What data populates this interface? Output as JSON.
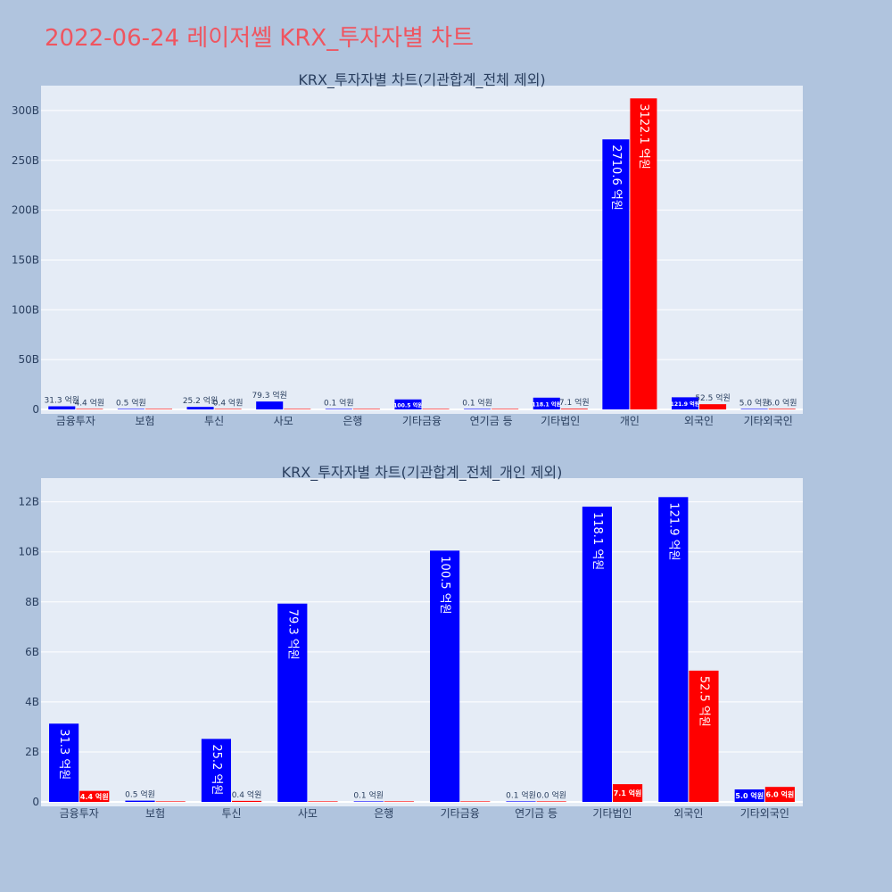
{
  "page": {
    "title": "2022-06-24 레이저쎌 KRX_투자자별 차트"
  },
  "colors": {
    "background": "#b0c4de",
    "plot_bg": "#e5ecf6",
    "title": "#ef5560",
    "buy": "#0000ff",
    "sell": "#ff0000"
  },
  "chart_data": [
    {
      "type": "bar",
      "title": "KRX_투자자별 차트(기관합계_전체 제외)",
      "categories": [
        "금융투자",
        "보험",
        "투신",
        "사모",
        "은행",
        "기타금융",
        "연기금 등",
        "기타법인",
        "개인",
        "외국인",
        "기타외국인"
      ],
      "yticks": [
        "0",
        "50B",
        "100B",
        "150B",
        "200B",
        "250B",
        "300B"
      ],
      "ylim": [
        0,
        325
      ],
      "yunit": "B",
      "grid": true,
      "series": [
        {
          "color": "#0000ff",
          "values": [
            3.13,
            0.05,
            2.52,
            7.93,
            0.01,
            10.05,
            0.01,
            11.81,
            271.06,
            12.19,
            0.5
          ],
          "labels": [
            "31.3 억원",
            "0.5 억원",
            "25.2 억원",
            "79.3 억원",
            "0.1 억원",
            "100.5 억원",
            "0.1 억원",
            "118.1 억원",
            "2710.6 억원",
            "121.9 억원",
            "5.0 억원"
          ]
        },
        {
          "color": "#ff0000",
          "values": [
            0.44,
            0,
            0.04,
            0,
            0,
            0,
            0,
            0.71,
            312.21,
            5.25,
            0.6
          ],
          "labels": [
            "4.4 억원",
            "",
            "0.4 억원",
            "",
            "",
            "",
            "",
            "7.1 억원",
            "3122.1 억원",
            "52.5 억원",
            "6.0 억원"
          ]
        }
      ]
    },
    {
      "type": "bar",
      "title": "KRX_투자자별 차트(기관합계_전체_개인 제외)",
      "categories": [
        "금융투자",
        "보험",
        "투신",
        "사모",
        "은행",
        "기타금융",
        "연기금 등",
        "기타법인",
        "외국인",
        "기타외국인"
      ],
      "yticks": [
        "0",
        "2B",
        "4B",
        "6B",
        "8B",
        "10B",
        "12B"
      ],
      "ylim": [
        0,
        12.95
      ],
      "yunit": "B",
      "grid": true,
      "series": [
        {
          "color": "#0000ff",
          "values": [
            3.13,
            0.05,
            2.52,
            7.93,
            0.01,
            10.05,
            0.01,
            11.81,
            12.19,
            0.5
          ],
          "labels": [
            "31.3 억원",
            "0.5 억원",
            "25.2 억원",
            "79.3 억원",
            "0.1 억원",
            "100.5 억원",
            "0.1 억원",
            "118.1 억원",
            "121.9 억원",
            "5.0 억원"
          ]
        },
        {
          "color": "#ff0000",
          "values": [
            0.44,
            0,
            0.04,
            0,
            0,
            0,
            0,
            0.71,
            5.25,
            0.6
          ],
          "labels": [
            "4.4 억원",
            "",
            "0.4 억원",
            "",
            "",
            "",
            "0.0 억원",
            "7.1 억원",
            "52.5 억원",
            "6.0 억원"
          ]
        }
      ]
    }
  ]
}
